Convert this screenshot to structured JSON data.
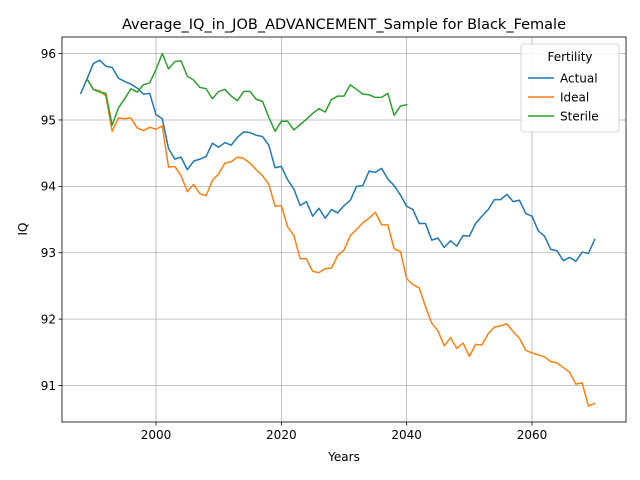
{
  "chart_data": {
    "type": "line",
    "title": "Average_IQ_in_JOB_ADVANCEMENT_Sample for Black_Female",
    "xlabel": "Years",
    "ylabel": "IQ",
    "xlim": [
      1985,
      2075
    ],
    "ylim": [
      90.45,
      96.25
    ],
    "xticks": [
      2000,
      2020,
      2040,
      2060
    ],
    "yticks": [
      91,
      92,
      93,
      94,
      95,
      96
    ],
    "grid": true,
    "legend": {
      "title": "Fertility",
      "placement": "top-right"
    },
    "series": [
      {
        "name": "Actual",
        "color": "#1f77b4",
        "x": [
          1988,
          1989,
          1990,
          1991,
          1992,
          1993,
          1994,
          1995,
          1996,
          1997,
          1998,
          1999,
          2000,
          2001,
          2002,
          2003,
          2004,
          2005,
          2006,
          2007,
          2008,
          2009,
          2010,
          2011,
          2012,
          2013,
          2014,
          2015,
          2016,
          2017,
          2018,
          2019,
          2020,
          2021,
          2022,
          2023,
          2024,
          2025,
          2026,
          2027,
          2028,
          2029,
          2030,
          2031,
          2032,
          2033,
          2034,
          2035,
          2036,
          2037,
          2038,
          2039,
          2040,
          2041,
          2042,
          2043,
          2044,
          2045,
          2046,
          2047,
          2048,
          2049,
          2050,
          2051,
          2052,
          2053,
          2054,
          2055,
          2056,
          2057,
          2058,
          2059,
          2060,
          2061,
          2062,
          2063,
          2064,
          2065,
          2066,
          2067,
          2068,
          2069,
          2070
        ],
        "values": [
          95.4,
          95.62,
          95.85,
          95.9,
          95.81,
          95.79,
          95.63,
          95.58,
          95.54,
          95.48,
          95.39,
          95.4,
          95.08,
          95.02,
          94.57,
          94.41,
          94.44,
          94.25,
          94.38,
          94.41,
          94.45,
          94.65,
          94.59,
          94.66,
          94.62,
          94.74,
          94.82,
          94.81,
          94.77,
          94.75,
          94.62,
          94.28,
          94.3,
          94.1,
          93.96,
          93.71,
          93.77,
          93.55,
          93.67,
          93.52,
          93.65,
          93.6,
          93.71,
          93.79,
          94.0,
          94.01,
          94.23,
          94.21,
          94.27,
          94.11,
          94.01,
          93.87,
          93.7,
          93.65,
          93.44,
          93.44,
          93.19,
          93.22,
          93.08,
          93.18,
          93.1,
          93.26,
          93.25,
          93.44,
          93.55,
          93.65,
          93.8,
          93.8,
          93.88,
          93.77,
          93.79,
          93.59,
          93.55,
          93.33,
          93.25,
          93.05,
          93.03,
          92.88,
          92.93,
          92.87,
          93.01,
          92.99,
          93.2
        ]
      },
      {
        "name": "Ideal",
        "color": "#ff7f0e",
        "x": [
          1989,
          1990,
          1991,
          1992,
          1993,
          1994,
          1995,
          1996,
          1997,
          1998,
          1999,
          2000,
          2001,
          2002,
          2003,
          2004,
          2005,
          2006,
          2007,
          2008,
          2009,
          2010,
          2011,
          2012,
          2013,
          2014,
          2015,
          2016,
          2017,
          2018,
          2019,
          2020,
          2021,
          2022,
          2023,
          2024,
          2025,
          2026,
          2027,
          2028,
          2029,
          2030,
          2031,
          2032,
          2033,
          2034,
          2035,
          2036,
          2037,
          2038,
          2039,
          2040,
          2041,
          2042,
          2043,
          2044,
          2045,
          2046,
          2047,
          2048,
          2049,
          2050,
          2051,
          2052,
          2053,
          2054,
          2055,
          2056,
          2057,
          2058,
          2059,
          2060,
          2061,
          2062,
          2063,
          2064,
          2065,
          2066,
          2067,
          2068,
          2069,
          2070
        ],
        "values": [
          95.62,
          95.46,
          95.44,
          95.36,
          94.83,
          95.03,
          95.02,
          95.03,
          94.88,
          94.84,
          94.89,
          94.86,
          94.91,
          94.29,
          94.3,
          94.16,
          93.92,
          94.03,
          93.89,
          93.86,
          94.09,
          94.19,
          94.35,
          94.37,
          94.44,
          94.42,
          94.35,
          94.25,
          94.16,
          94.03,
          93.7,
          93.71,
          93.39,
          93.26,
          92.91,
          92.91,
          92.72,
          92.7,
          92.76,
          92.77,
          92.96,
          93.04,
          93.26,
          93.35,
          93.45,
          93.52,
          93.61,
          93.42,
          93.42,
          93.06,
          93.02,
          92.61,
          92.52,
          92.47,
          92.19,
          91.94,
          91.82,
          91.6,
          91.72,
          91.56,
          91.64,
          91.44,
          91.62,
          91.61,
          91.78,
          91.88,
          91.9,
          91.93,
          91.81,
          91.71,
          91.53,
          91.49,
          91.46,
          91.43,
          91.36,
          91.34,
          91.27,
          91.2,
          91.02,
          91.04,
          90.69,
          90.73
        ]
      },
      {
        "name": "Sterile",
        "color": "#2ca02c",
        "x": [
          1989,
          1990,
          1991,
          1992,
          1993,
          1994,
          1995,
          1996,
          1997,
          1998,
          1999,
          2000,
          2001,
          2002,
          2003,
          2004,
          2005,
          2006,
          2007,
          2008,
          2009,
          2010,
          2011,
          2012,
          2013,
          2014,
          2015,
          2016,
          2017,
          2018,
          2019,
          2020,
          2021,
          2022,
          2023,
          2024,
          2025,
          2026,
          2027,
          2028,
          2029,
          2030,
          2031,
          2032,
          2033,
          2034,
          2035,
          2036,
          2037,
          2038,
          2039,
          2040
        ],
        "values": [
          95.62,
          95.46,
          95.42,
          95.4,
          94.92,
          95.18,
          95.32,
          95.47,
          95.42,
          95.53,
          95.56,
          95.76,
          96.0,
          95.77,
          95.88,
          95.89,
          95.66,
          95.6,
          95.49,
          95.47,
          95.32,
          95.43,
          95.46,
          95.36,
          95.29,
          95.43,
          95.43,
          95.31,
          95.28,
          95.04,
          94.83,
          94.98,
          94.98,
          94.85,
          94.93,
          95.01,
          95.1,
          95.17,
          95.12,
          95.31,
          95.36,
          95.36,
          95.53,
          95.46,
          95.39,
          95.38,
          95.34,
          95.34,
          95.4,
          95.07,
          95.21,
          95.23
        ]
      }
    ]
  }
}
